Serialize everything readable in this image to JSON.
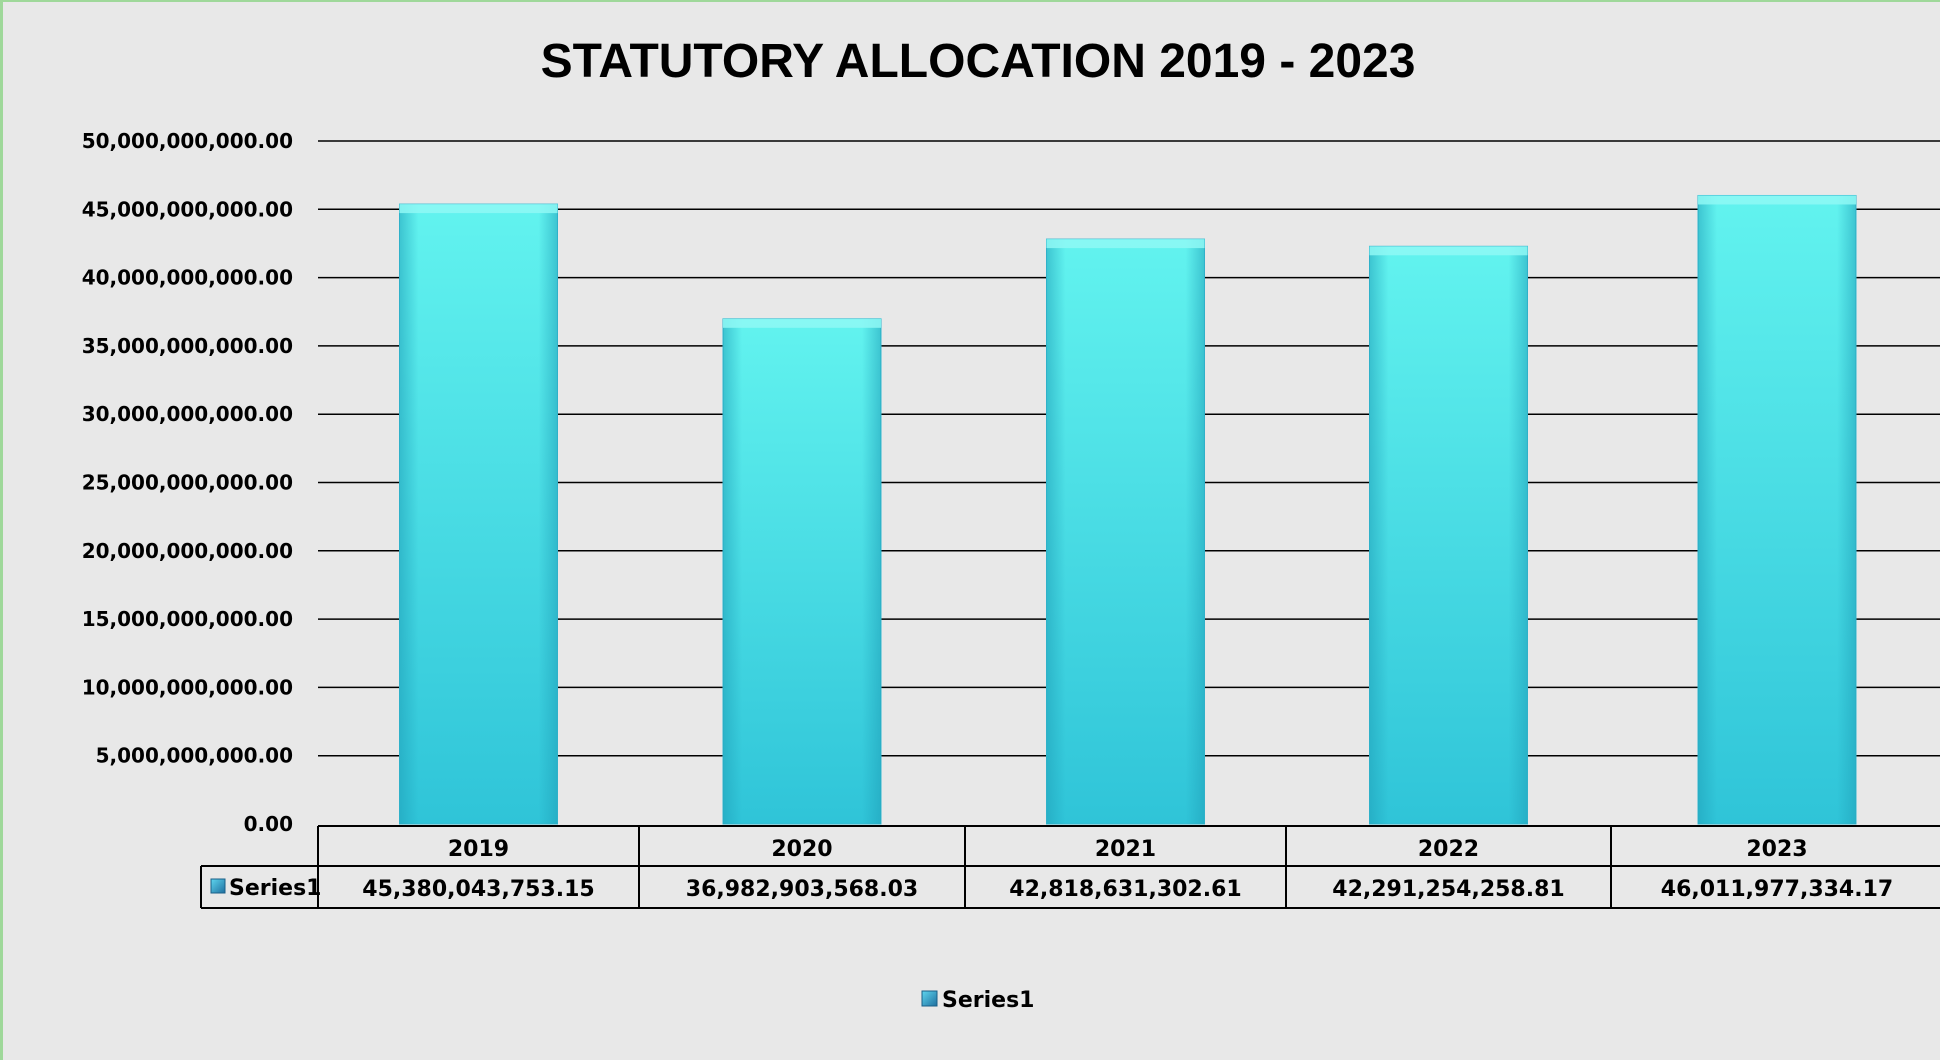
{
  "chart_data": {
    "type": "bar",
    "title": "STATUTORY ALLOCATION 2019 - 2023",
    "xlabel": "",
    "ylabel": "",
    "categories": [
      "2019",
      "2020",
      "2021",
      "2022",
      "2023"
    ],
    "series": [
      {
        "name": "Series1",
        "values": [
          45380043753.15,
          36982903568.03,
          42818631302.61,
          42291254258.81,
          46011977334.17
        ],
        "value_labels": [
          "45,380,043,753.15",
          "36,982,903,568.03",
          "42,818,631,302.61",
          "42,291,254,258.81",
          "46,011,977,334.17"
        ]
      }
    ],
    "ylim": [
      0,
      50000000000
    ],
    "yticks": [
      0,
      5000000000,
      10000000000,
      15000000000,
      20000000000,
      25000000000,
      30000000000,
      35000000000,
      40000000000,
      45000000000,
      50000000000
    ],
    "ytick_labels": [
      "0.00",
      "5,000,000,000.00",
      "10,000,000,000.00",
      "15,000,000,000.00",
      "20,000,000,000.00",
      "25,000,000,000.00",
      "30,000,000,000.00",
      "35,000,000,000.00",
      "40,000,000,000.00",
      "45,000,000,000.00",
      "50,000,000,000.00"
    ],
    "grid": true,
    "data_table": true,
    "legend": {
      "position": "bottom",
      "entries": [
        "Series1"
      ]
    },
    "colors": {
      "bar_top": "#62f3ef",
      "bar_bottom": "#2fc4d8",
      "bar_edge": "#1f9fb8",
      "legend_key": "#2a8fbf",
      "background": "#e8e8e8"
    }
  }
}
